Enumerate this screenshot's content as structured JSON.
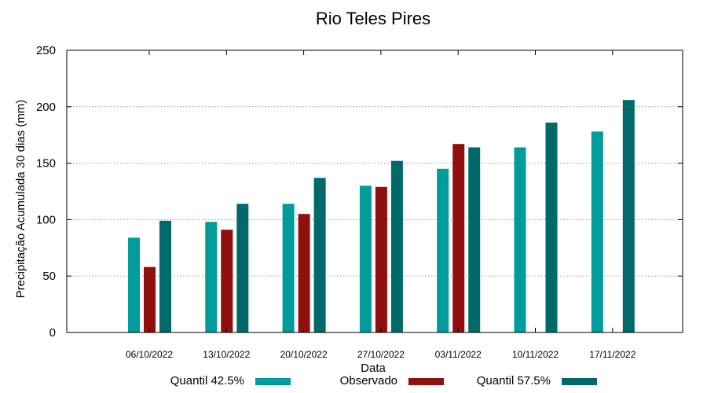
{
  "chart_data": {
    "type": "bar",
    "title": "Rio Teles Pires",
    "xlabel": "Data",
    "ylabel": "Precipitação Acumulada 30 dias (mm)",
    "ylim": [
      0,
      250
    ],
    "yticks": [
      0,
      50,
      100,
      150,
      200,
      250
    ],
    "grid": true,
    "legend_position": "bottom",
    "categories": [
      "06/10/2022",
      "13/10/2022",
      "20/10/2022",
      "27/10/2022",
      "03/11/2022",
      "10/11/2022",
      "17/11/2022"
    ],
    "series": [
      {
        "name": "Quantil 42.5%",
        "color": "#009c9c",
        "values": [
          84,
          98,
          114,
          130,
          145,
          164,
          178
        ]
      },
      {
        "name": "Observado",
        "color": "#920f0f",
        "values": [
          58,
          91,
          105,
          129,
          167,
          null,
          null
        ]
      },
      {
        "name": "Quantil 57.5%",
        "color": "#006a6a",
        "values": [
          99,
          114,
          137,
          152,
          164,
          186,
          206
        ]
      }
    ]
  }
}
